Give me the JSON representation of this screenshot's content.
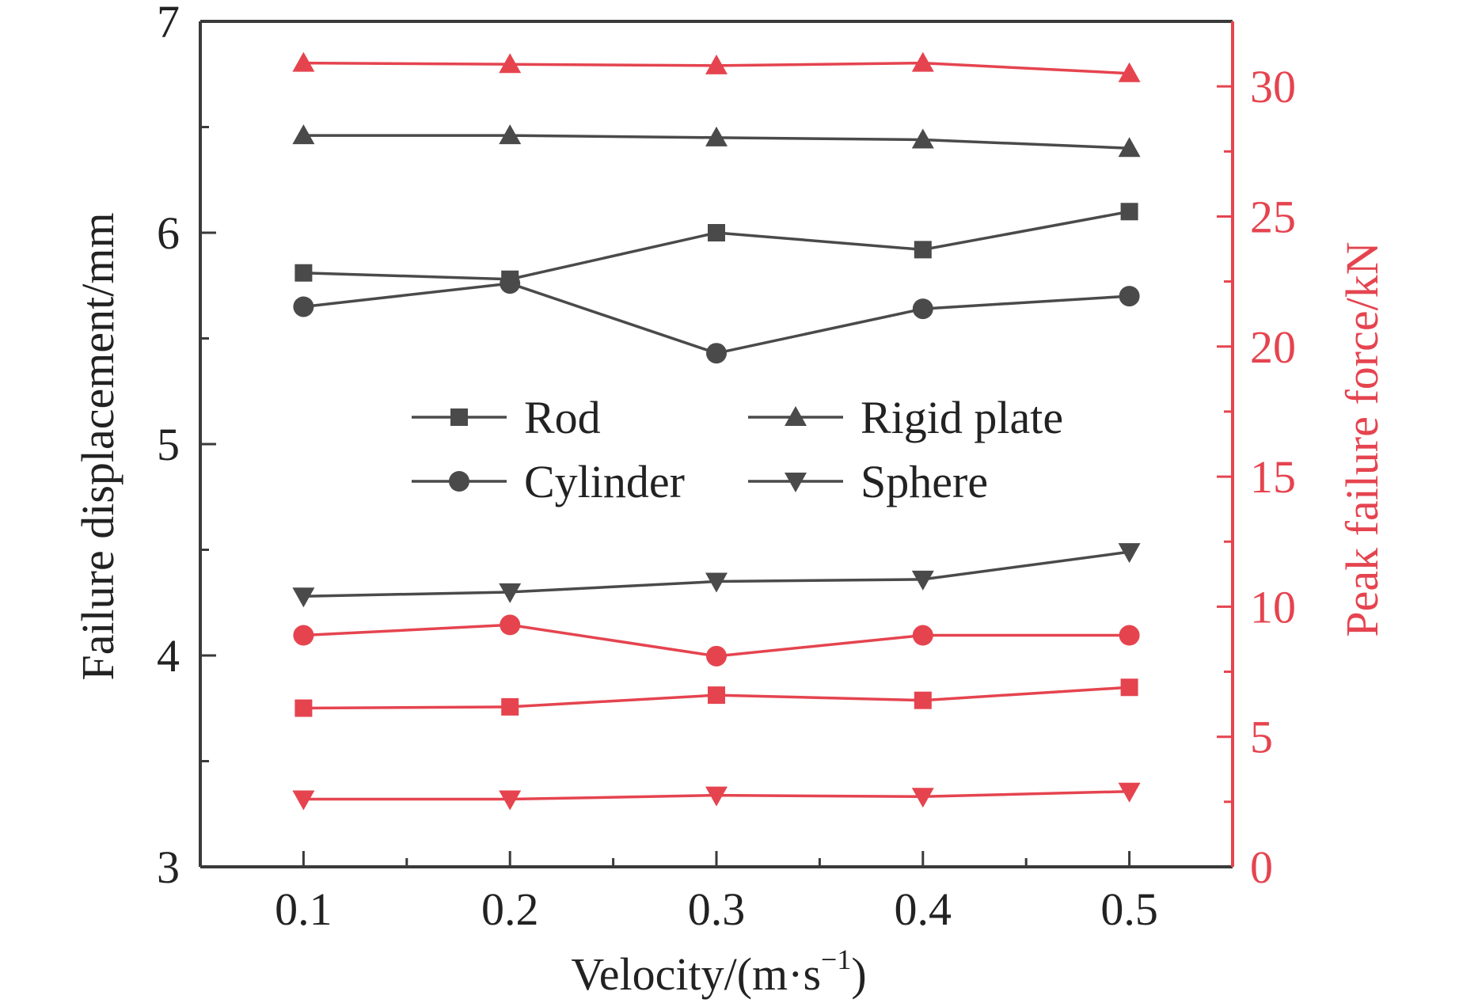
{
  "chart_data": {
    "type": "line",
    "x": [
      0.1,
      0.2,
      0.3,
      0.4,
      0.5
    ],
    "xlabel": "Velocity/(m·s",
    "xlabel_sup": "−1",
    "xlabel_close": ")",
    "x_tick_labels": [
      "0.1",
      "0.2",
      "0.3",
      "0.4",
      "0.5"
    ],
    "xlim": [
      0.05,
      0.55
    ],
    "ylabel_left": "Failure displacement/mm",
    "ylim_left": [
      3,
      7
    ],
    "y_left_tick_labels": [
      "3",
      "4",
      "5",
      "6",
      "7"
    ],
    "y_left_ticks": [
      3,
      4,
      5,
      6,
      7
    ],
    "ylabel_right": "Peak failure force/kN",
    "ylim_right": [
      0,
      32.5
    ],
    "y_right_tick_labels": [
      "0",
      "5",
      "10",
      "15",
      "20",
      "25",
      "30"
    ],
    "y_right_ticks": [
      0,
      5,
      10,
      15,
      20,
      25,
      30
    ],
    "colors": {
      "displacement": "#4a4a4a",
      "force": "#e5444f",
      "axis": "#3a3a3a"
    },
    "legend": {
      "placement": "center",
      "entries": [
        {
          "label": "Rod",
          "marker": "square"
        },
        {
          "label": "Rigid plate",
          "marker": "triangle-up"
        },
        {
          "label": "Cylinder",
          "marker": "circle"
        },
        {
          "label": "Sphere",
          "marker": "triangle-down"
        }
      ]
    },
    "series": [
      {
        "name": "Rod displacement",
        "axis": "left",
        "marker": "square",
        "values": [
          5.81,
          5.78,
          6.0,
          5.92,
          6.1
        ]
      },
      {
        "name": "Rigid plate displacement",
        "axis": "left",
        "marker": "triangle-up",
        "values": [
          6.46,
          6.46,
          6.45,
          6.44,
          6.4
        ]
      },
      {
        "name": "Cylinder displacement",
        "axis": "left",
        "marker": "circle",
        "values": [
          5.65,
          5.76,
          5.43,
          5.64,
          5.7
        ]
      },
      {
        "name": "Sphere displacement",
        "axis": "left",
        "marker": "triangle-down",
        "values": [
          4.28,
          4.3,
          4.35,
          4.36,
          4.49
        ]
      },
      {
        "name": "Rigid plate force",
        "axis": "right",
        "marker": "triangle-up",
        "values": [
          30.9,
          30.85,
          30.8,
          30.9,
          30.5
        ]
      },
      {
        "name": "Cylinder force",
        "axis": "right",
        "marker": "circle",
        "values": [
          8.9,
          9.3,
          8.1,
          8.9,
          8.9
        ]
      },
      {
        "name": "Rod force",
        "axis": "right",
        "marker": "square",
        "values": [
          6.1,
          6.15,
          6.6,
          6.4,
          6.9
        ]
      },
      {
        "name": "Sphere force",
        "axis": "right",
        "marker": "triangle-down",
        "values": [
          2.6,
          2.6,
          2.75,
          2.7,
          2.9
        ]
      }
    ]
  }
}
